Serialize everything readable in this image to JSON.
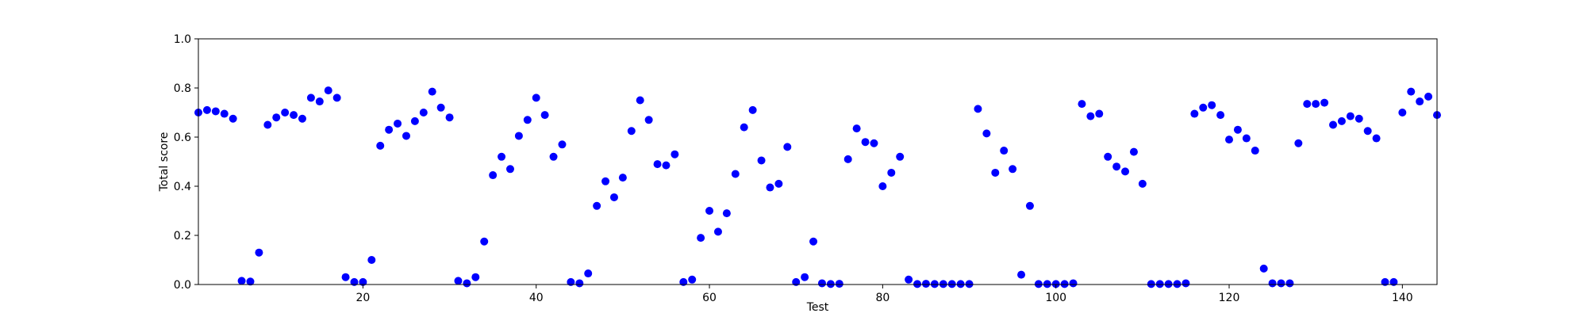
{
  "chart_data": {
    "type": "scatter",
    "xlabel": "Test",
    "ylabel": "Total score",
    "xlim": [
      1,
      144
    ],
    "ylim": [
      0.0,
      1.0
    ],
    "x_ticks": [
      20,
      40,
      60,
      80,
      100,
      120,
      140
    ],
    "y_ticks": [
      0.0,
      0.2,
      0.4,
      0.6,
      0.8,
      1.0
    ],
    "y_tick_labels": [
      "0.0",
      "0.2",
      "0.4",
      "0.6",
      "0.8",
      "1.0"
    ],
    "grid": false,
    "marker_color": "#0000ff",
    "series": [
      {
        "x": [
          1,
          2,
          3,
          4,
          5,
          6,
          7,
          8,
          9,
          10,
          11,
          12,
          13,
          14,
          15,
          16,
          17,
          18,
          19,
          20,
          21,
          22,
          23,
          24,
          25,
          26,
          27,
          28,
          29,
          30,
          31,
          32,
          33,
          34,
          35,
          36,
          37,
          38,
          39,
          40,
          41,
          42,
          43,
          44,
          45,
          46,
          47,
          48,
          49,
          50,
          51,
          52,
          53,
          54,
          55,
          56,
          57,
          58,
          59,
          60,
          61,
          62,
          63,
          64,
          65,
          66,
          67,
          68,
          69,
          70,
          71,
          72,
          73,
          74,
          75,
          76,
          77,
          78,
          79,
          80,
          81,
          82,
          83,
          84,
          85,
          86,
          87,
          88,
          89,
          90,
          91,
          92,
          93,
          94,
          95,
          96,
          97,
          98,
          99,
          100,
          101,
          102,
          103,
          104,
          105,
          106,
          107,
          108,
          109,
          110,
          111,
          112,
          113,
          114,
          115,
          116,
          117,
          118,
          119,
          120,
          121,
          122,
          123,
          124,
          125,
          126,
          127,
          128,
          129,
          130,
          131,
          132,
          133,
          134,
          135,
          136,
          137,
          138,
          139,
          140,
          141,
          142,
          143,
          144
        ],
        "y": [
          0.7,
          0.71,
          0.705,
          0.695,
          0.675,
          0.015,
          0.012,
          0.13,
          0.65,
          0.68,
          0.7,
          0.69,
          0.675,
          0.76,
          0.745,
          0.79,
          0.76,
          0.03,
          0.01,
          0.01,
          0.1,
          0.565,
          0.63,
          0.655,
          0.605,
          0.665,
          0.7,
          0.785,
          0.72,
          0.68,
          0.015,
          0.005,
          0.03,
          0.175,
          0.445,
          0.52,
          0.47,
          0.605,
          0.67,
          0.76,
          0.69,
          0.52,
          0.57,
          0.01,
          0.005,
          0.045,
          0.32,
          0.42,
          0.355,
          0.435,
          0.625,
          0.75,
          0.67,
          0.49,
          0.485,
          0.53,
          0.01,
          0.02,
          0.19,
          0.3,
          0.215,
          0.29,
          0.45,
          0.64,
          0.71,
          0.505,
          0.395,
          0.41,
          0.56,
          0.01,
          0.03,
          0.175,
          0.005,
          0.002,
          0.003,
          0.51,
          0.635,
          0.58,
          0.575,
          0.4,
          0.455,
          0.52,
          0.02,
          0.002,
          0.003,
          0.002,
          0.002,
          0.002,
          0.002,
          0.002,
          0.715,
          0.615,
          0.455,
          0.545,
          0.47,
          0.04,
          0.32,
          0.002,
          0.002,
          0.002,
          0.002,
          0.005,
          0.735,
          0.685,
          0.695,
          0.52,
          0.48,
          0.46,
          0.54,
          0.41,
          0.002,
          0.002,
          0.002,
          0.002,
          0.005,
          0.695,
          0.72,
          0.73,
          0.69,
          0.59,
          0.63,
          0.595,
          0.545,
          0.065,
          0.005,
          0.005,
          0.005,
          0.575,
          0.735,
          0.735,
          0.74,
          0.65,
          0.665,
          0.685,
          0.675,
          0.625,
          0.595,
          0.01,
          0.01,
          0.7,
          0.785,
          0.745,
          0.765,
          0.69
        ]
      }
    ]
  }
}
